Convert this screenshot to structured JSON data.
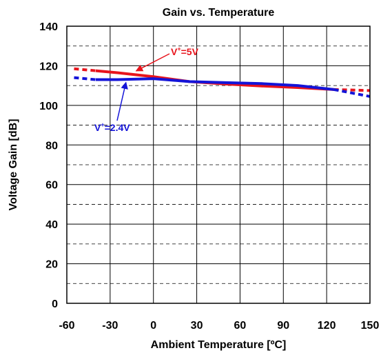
{
  "chart_data": {
    "type": "line",
    "title": "Gain vs. Temperature",
    "xlabel": "Ambient Temperature [ºC]",
    "ylabel": "Voltage Gain [dB]",
    "xlim": [
      -60,
      150
    ],
    "ylim": [
      0,
      140
    ],
    "xticks": [
      -60,
      -30,
      0,
      30,
      60,
      90,
      120,
      150
    ],
    "yticks": [
      0,
      20,
      40,
      60,
      80,
      100,
      120,
      140
    ],
    "grid": {
      "x": true,
      "y": "dashed, every 10 dB"
    },
    "series": [
      {
        "name": "V+=5V",
        "color": "#e8141c",
        "solid": {
          "x": [
            -40,
            -25,
            0,
            25,
            50,
            75,
            100,
            125
          ],
          "y": [
            117.5,
            116.5,
            114.5,
            112,
            110.8,
            109.8,
            109,
            108
          ]
        },
        "dashed": [
          {
            "x": [
              -55,
              -40
            ],
            "y": [
              118.5,
              117.5
            ]
          },
          {
            "x": [
              125,
              150
            ],
            "y": [
              108,
              107.5
            ]
          }
        ]
      },
      {
        "name": "V+=2.4V",
        "color": "#1414d8",
        "solid": {
          "x": [
            -40,
            -25,
            0,
            25,
            50,
            75,
            100,
            125
          ],
          "y": [
            113,
            113,
            113.5,
            112,
            111.5,
            111,
            110,
            108
          ]
        },
        "dashed": [
          {
            "x": [
              -55,
              -40
            ],
            "y": [
              114,
              113
            ]
          },
          {
            "x": [
              125,
              150
            ],
            "y": [
              108,
              104.5
            ]
          }
        ]
      }
    ],
    "annotations": [
      {
        "base": "V",
        "sup": "+",
        "rest": "=5V",
        "color": "#e8141c",
        "arrow_to": [
          -12,
          116
        ]
      },
      {
        "base": "V",
        "sup": "+",
        "rest": "=2.4V",
        "color": "#1414d8",
        "arrow_to": [
          -20,
          113
        ]
      }
    ]
  }
}
